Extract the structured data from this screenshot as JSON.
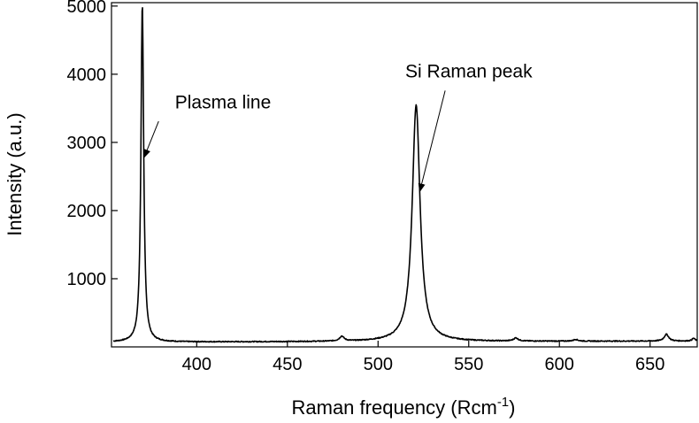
{
  "chart_data": {
    "type": "line",
    "title": "",
    "xlabel": "Raman frequency (Rcm",
    "xlabel_superscript": "-1",
    "xlabel_suffix": ")",
    "ylabel": "Intensity (a.u.)",
    "xlim": [
      353,
      676
    ],
    "ylim": [
      0,
      5050
    ],
    "grid": false,
    "x_ticks": [
      400,
      450,
      500,
      550,
      600,
      650
    ],
    "x_tick_labels": [
      "400",
      "450",
      "500",
      "550",
      "600",
      "650"
    ],
    "y_ticks": [
      1000,
      2000,
      3000,
      4000,
      5000
    ],
    "y_tick_labels": [
      "1000",
      "2000",
      "3000",
      "4000",
      "5000"
    ],
    "series": [
      {
        "line_color": "#000000",
        "peaks": [
          {
            "center": 370,
            "height": 4960,
            "width": 0.9
          },
          {
            "center": 521,
            "height": 3470,
            "width": 2.6
          },
          {
            "center": 480,
            "height": 70,
            "width": 1.5
          },
          {
            "center": 576,
            "height": 45,
            "width": 1.5
          },
          {
            "center": 609,
            "height": 25,
            "width": 1.5
          },
          {
            "center": 659,
            "height": 100,
            "width": 1.5
          },
          {
            "center": 674,
            "height": 40,
            "width": 1.0
          }
        ],
        "baseline": 70,
        "baseline_end": 85,
        "x_start": 354,
        "x_end": 676
      }
    ],
    "annotations": [
      {
        "text": "Plasma line",
        "text_x": 388,
        "text_y": 3500,
        "arrow_from": [
          379,
          3310
        ],
        "arrow_to": [
          371,
          2780
        ]
      },
      {
        "text": "Si Raman peak",
        "text_x": 515,
        "text_y": 3950,
        "arrow_from": [
          537,
          3760
        ],
        "arrow_to": [
          523,
          2280
        ]
      }
    ]
  }
}
